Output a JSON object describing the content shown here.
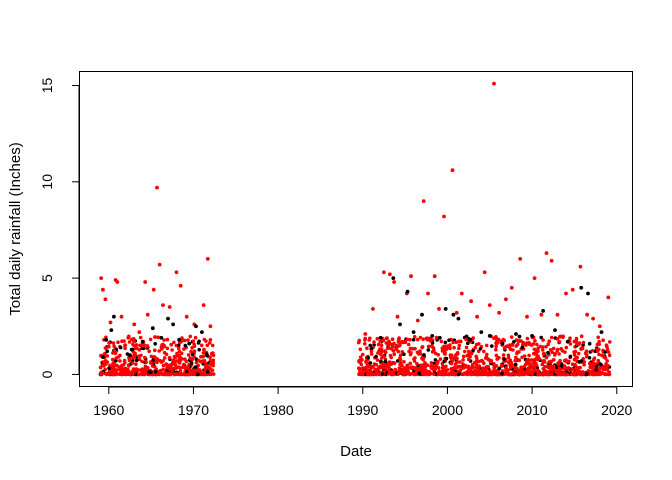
{
  "chart_data": {
    "type": "scatter",
    "title": "",
    "xlabel": "Date",
    "ylabel": "Total daily rainfall (Inches)",
    "xlim": [
      1956.6,
      2021.8
    ],
    "ylim": [
      -0.6,
      15.7
    ],
    "xticks": [
      1960,
      1970,
      1980,
      1990,
      2000,
      2010,
      2020
    ],
    "xtick_labels": [
      "1960",
      "1970",
      "1980",
      "1990",
      "2000",
      "2010",
      "2020"
    ],
    "yticks": [
      0,
      5,
      10,
      15
    ],
    "ytick_labels": [
      "0",
      "5",
      "10",
      "15"
    ],
    "grid": false,
    "legend": "none",
    "colors": {
      "series_a": "#000000",
      "series_b": "#ff0000"
    },
    "series": [
      {
        "color": "#ff0000",
        "points": [
          [
            1959.1,
            5.0
          ],
          [
            1959.3,
            4.4
          ],
          [
            1959.6,
            3.9
          ],
          [
            1960.2,
            2.7
          ],
          [
            1960.8,
            4.9
          ],
          [
            1961.0,
            4.8
          ],
          [
            1961.5,
            3.0
          ],
          [
            1962.3,
            1.9
          ],
          [
            1963.0,
            2.6
          ],
          [
            1963.6,
            2.2
          ],
          [
            1964.3,
            4.8
          ],
          [
            1964.6,
            3.1
          ],
          [
            1965.3,
            4.4
          ],
          [
            1965.7,
            9.7
          ],
          [
            1966.0,
            5.7
          ],
          [
            1966.4,
            3.6
          ],
          [
            1967.2,
            3.5
          ],
          [
            1968.0,
            5.3
          ],
          [
            1968.5,
            4.6
          ],
          [
            1969.2,
            3.0
          ],
          [
            1970.1,
            2.6
          ],
          [
            1971.2,
            3.6
          ],
          [
            1971.7,
            6.0
          ],
          [
            1972.0,
            2.5
          ],
          [
            1990.3,
            2.1
          ],
          [
            1991.2,
            3.4
          ],
          [
            1992.5,
            5.3
          ],
          [
            1993.2,
            5.2
          ],
          [
            1993.7,
            4.8
          ],
          [
            1994.1,
            3.0
          ],
          [
            1995.2,
            4.2
          ],
          [
            1995.7,
            5.1
          ],
          [
            1996.5,
            2.8
          ],
          [
            1997.2,
            9.0
          ],
          [
            1997.7,
            4.2
          ],
          [
            1998.5,
            5.1
          ],
          [
            1999.0,
            3.4
          ],
          [
            1999.6,
            8.2
          ],
          [
            2000.6,
            10.6
          ],
          [
            2001.1,
            3.2
          ],
          [
            2001.7,
            4.2
          ],
          [
            2002.8,
            3.8
          ],
          [
            2003.5,
            3.0
          ],
          [
            2004.4,
            5.3
          ],
          [
            2005.0,
            3.6
          ],
          [
            2005.5,
            15.1
          ],
          [
            2006.1,
            3.2
          ],
          [
            2006.9,
            3.9
          ],
          [
            2007.6,
            4.5
          ],
          [
            2008.6,
            6.0
          ],
          [
            2009.4,
            3.0
          ],
          [
            2010.3,
            5.0
          ],
          [
            2011.1,
            3.1
          ],
          [
            2011.7,
            6.3
          ],
          [
            2012.3,
            5.9
          ],
          [
            2013.0,
            3.1
          ],
          [
            2014.0,
            4.2
          ],
          [
            2014.8,
            4.4
          ],
          [
            2015.7,
            5.6
          ],
          [
            2016.5,
            3.1
          ],
          [
            2017.2,
            2.9
          ],
          [
            2018.0,
            2.5
          ],
          [
            2019.0,
            4.0
          ]
        ]
      },
      {
        "color": "#000000",
        "points": [
          [
            1959.3,
            0.9
          ],
          [
            1959.7,
            1.8
          ],
          [
            1960.3,
            2.3
          ],
          [
            1960.6,
            3.0
          ],
          [
            1961.4,
            1.4
          ],
          [
            1962.5,
            1.0
          ],
          [
            1964.0,
            1.7
          ],
          [
            1965.2,
            2.4
          ],
          [
            1966.2,
            1.9
          ],
          [
            1967.0,
            2.9
          ],
          [
            1967.6,
            2.6
          ],
          [
            1968.3,
            1.8
          ],
          [
            1969.5,
            1.6
          ],
          [
            1970.3,
            2.5
          ],
          [
            1971.0,
            2.2
          ],
          [
            1971.6,
            1.0
          ],
          [
            1992.1,
            1.9
          ],
          [
            1993.6,
            5.0
          ],
          [
            1994.4,
            2.6
          ],
          [
            1995.3,
            4.3
          ],
          [
            1996.0,
            2.2
          ],
          [
            1997.0,
            3.1
          ],
          [
            1998.2,
            2.0
          ],
          [
            1999.1,
            1.9
          ],
          [
            1999.8,
            3.4
          ],
          [
            2000.7,
            3.1
          ],
          [
            2001.3,
            2.9
          ],
          [
            2002.7,
            1.8
          ],
          [
            2004.0,
            2.2
          ],
          [
            2005.0,
            2.0
          ],
          [
            2006.5,
            1.6
          ],
          [
            2008.1,
            2.1
          ],
          [
            2010.0,
            2.0
          ],
          [
            2011.3,
            3.3
          ],
          [
            2012.7,
            2.3
          ],
          [
            2014.2,
            1.7
          ],
          [
            2015.8,
            4.5
          ],
          [
            2016.6,
            4.2
          ],
          [
            2018.2,
            2.2
          ]
        ]
      }
    ],
    "dense_ranges": [
      [
        1959.0,
        1972.4
      ],
      [
        1989.5,
        2019.2
      ]
    ],
    "dense_y_typical_max": 2.0
  }
}
